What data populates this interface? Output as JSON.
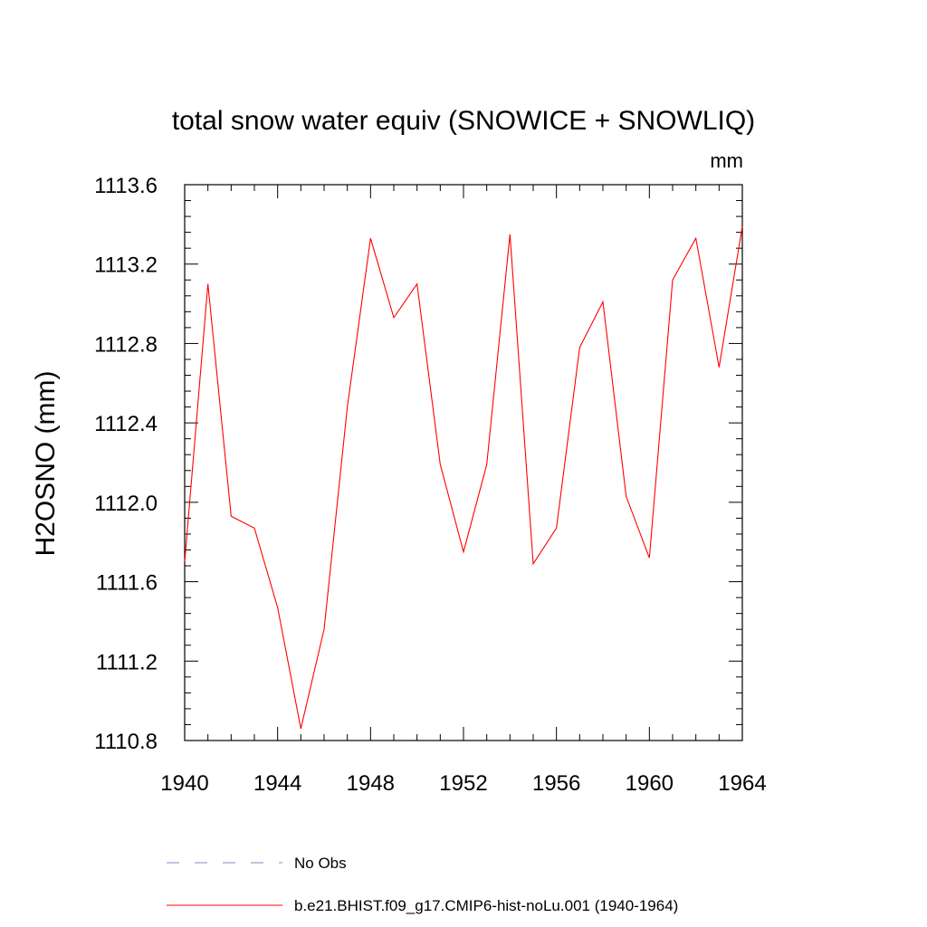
{
  "chart_data": {
    "type": "line",
    "title": "total snow water equiv (SNOWICE + SNOWLIQ)",
    "units": "mm",
    "ylabel": "H2OSNO  (mm)",
    "xlabel": "",
    "xlim": [
      1940,
      1964
    ],
    "ylim": [
      1110.8,
      1113.6
    ],
    "x_ticks": [
      1940,
      1944,
      1948,
      1952,
      1956,
      1960,
      1964
    ],
    "x_tick_labels": [
      "1940",
      "1944",
      "1948",
      "1952",
      "1956",
      "1960",
      "1964"
    ],
    "y_ticks": [
      1110.8,
      1111.2,
      1111.6,
      1112.0,
      1112.4,
      1112.8,
      1113.2,
      1113.6
    ],
    "y_tick_labels": [
      "1110.8",
      "1111.2",
      "1111.6",
      "1112.0",
      "1112.4",
      "1112.8",
      "1113.2",
      "1113.6"
    ],
    "grid": false,
    "legend_position": "bottom",
    "series": [
      {
        "name": "b.e21.BHIST.f09_g17.CMIP6-hist-noLu.001 (1940-1964)",
        "color": "#ff0000",
        "style": "solid",
        "x": [
          1940,
          1941,
          1942,
          1943,
          1944,
          1945,
          1946,
          1947,
          1948,
          1949,
          1950,
          1951,
          1952,
          1953,
          1954,
          1955,
          1956,
          1957,
          1958,
          1959,
          1960,
          1961,
          1962,
          1963,
          1964
        ],
        "values": [
          1111.7,
          1113.1,
          1111.93,
          1111.87,
          1111.47,
          1110.86,
          1111.36,
          1112.48,
          1113.33,
          1112.93,
          1113.1,
          1112.19,
          1111.75,
          1112.19,
          1113.35,
          1111.69,
          1111.87,
          1112.78,
          1113.01,
          1112.03,
          1111.72,
          1113.12,
          1113.33,
          1112.68,
          1113.39
        ]
      }
    ],
    "legend": [
      {
        "label": "No Obs",
        "color": "#8a85c4",
        "style": "dashed"
      },
      {
        "label": "b.e21.BHIST.f09_g17.CMIP6-hist-noLu.001 (1940-1964)",
        "color": "#ff0000",
        "style": "solid"
      }
    ]
  }
}
